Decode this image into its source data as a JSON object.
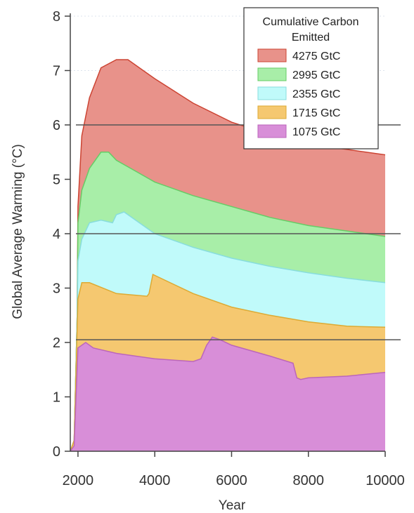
{
  "chart_data": {
    "type": "area",
    "title": "",
    "xlabel": "Year",
    "ylabel": "Global Average Warming (°C)",
    "xlim": [
      1800,
      10000
    ],
    "ylim": [
      0,
      8
    ],
    "xticks": [
      2000,
      4000,
      6000,
      8000,
      10000
    ],
    "yticks": [
      0,
      1,
      2,
      3,
      4,
      5,
      6,
      7,
      8
    ],
    "grid": false,
    "dotted_gridlines_at": [
      7,
      8
    ],
    "reference_lines_y": [
      6,
      4,
      2.05
    ],
    "legend": {
      "title_lines": [
        "Cumulative Carbon",
        "Emitted"
      ],
      "placement": "top-right"
    },
    "series": [
      {
        "name": "4275 GtC",
        "color": "#e8928a",
        "edge": "#cc4433",
        "points": [
          [
            1800,
            0
          ],
          [
            1900,
            0.2
          ],
          [
            1980,
            2.5
          ],
          [
            2000,
            4.5
          ],
          [
            2100,
            5.8
          ],
          [
            2300,
            6.5
          ],
          [
            2600,
            7.05
          ],
          [
            3000,
            7.2
          ],
          [
            3300,
            7.2
          ],
          [
            3600,
            7.05
          ],
          [
            4000,
            6.85
          ],
          [
            5000,
            6.4
          ],
          [
            6000,
            6.05
          ],
          [
            7000,
            5.82
          ],
          [
            8000,
            5.65
          ],
          [
            9000,
            5.55
          ],
          [
            10000,
            5.45
          ]
        ]
      },
      {
        "name": "2995 GtC",
        "color": "#a8eea8",
        "edge": "#66cc66",
        "points": [
          [
            1800,
            0
          ],
          [
            1900,
            0.2
          ],
          [
            1980,
            2.5
          ],
          [
            2000,
            4.2
          ],
          [
            2100,
            4.8
          ],
          [
            2300,
            5.2
          ],
          [
            2600,
            5.5
          ],
          [
            2800,
            5.5
          ],
          [
            3000,
            5.35
          ],
          [
            3500,
            5.15
          ],
          [
            4000,
            4.95
          ],
          [
            5000,
            4.7
          ],
          [
            6000,
            4.5
          ],
          [
            7000,
            4.3
          ],
          [
            8000,
            4.15
          ],
          [
            9000,
            4.05
          ],
          [
            10000,
            3.95
          ]
        ]
      },
      {
        "name": "2355 GtC",
        "color": "#c0fafa",
        "edge": "#88dddd",
        "points": [
          [
            1800,
            0
          ],
          [
            1900,
            0.2
          ],
          [
            1980,
            2.5
          ],
          [
            2000,
            3.5
          ],
          [
            2100,
            3.9
          ],
          [
            2300,
            4.2
          ],
          [
            2600,
            4.25
          ],
          [
            2900,
            4.2
          ],
          [
            3000,
            4.35
          ],
          [
            3200,
            4.4
          ],
          [
            3600,
            4.2
          ],
          [
            4000,
            4.0
          ],
          [
            5000,
            3.75
          ],
          [
            6000,
            3.55
          ],
          [
            7000,
            3.4
          ],
          [
            8000,
            3.28
          ],
          [
            9000,
            3.18
          ],
          [
            10000,
            3.1
          ]
        ]
      },
      {
        "name": "1715 GtC",
        "color": "#f5c870",
        "edge": "#ddaa33",
        "points": [
          [
            1800,
            0
          ],
          [
            1900,
            0.2
          ],
          [
            2000,
            2.8
          ],
          [
            2100,
            3.1
          ],
          [
            2300,
            3.1
          ],
          [
            3000,
            2.9
          ],
          [
            3800,
            2.85
          ],
          [
            3850,
            2.9
          ],
          [
            3950,
            3.25
          ],
          [
            4100,
            3.2
          ],
          [
            5000,
            2.9
          ],
          [
            6000,
            2.65
          ],
          [
            7000,
            2.5
          ],
          [
            8000,
            2.38
          ],
          [
            9000,
            2.3
          ],
          [
            10000,
            2.28
          ]
        ]
      },
      {
        "name": "1075 GtC",
        "color": "#d88ed8",
        "edge": "#bb66bb",
        "points": [
          [
            1800,
            0
          ],
          [
            1900,
            0.1
          ],
          [
            2000,
            1.9
          ],
          [
            2200,
            2.0
          ],
          [
            2400,
            1.9
          ],
          [
            3000,
            1.8
          ],
          [
            4000,
            1.7
          ],
          [
            5000,
            1.65
          ],
          [
            5200,
            1.7
          ],
          [
            5350,
            1.95
          ],
          [
            5500,
            2.1
          ],
          [
            5700,
            2.05
          ],
          [
            6000,
            1.95
          ],
          [
            7000,
            1.75
          ],
          [
            7600,
            1.62
          ],
          [
            7700,
            1.35
          ],
          [
            7800,
            1.32
          ],
          [
            8000,
            1.35
          ],
          [
            9000,
            1.38
          ],
          [
            10000,
            1.45
          ]
        ]
      }
    ]
  }
}
